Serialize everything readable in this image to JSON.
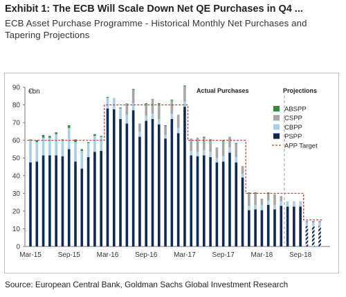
{
  "exhibit": {
    "title": "Exhibit 1: The ECB Will Scale Down Net QE Purchases in Q4 ...",
    "subtitle": "ECB Asset Purchase Programme - Historical Monthly Net Purchases and Tapering Projections"
  },
  "source": "Source: European Central Bank, Goldman Sachs Global Investment Research",
  "chart_data": {
    "type": "bar",
    "stacked": true,
    "ylabel": "€bn",
    "ylim": [
      0,
      90
    ],
    "yticks": [
      0,
      10,
      20,
      30,
      40,
      50,
      60,
      70,
      80,
      90
    ],
    "xtick_labels": [
      "Mar-15",
      "Sep-15",
      "Mar-16",
      "Sep-16",
      "Mar-17",
      "Sep-17",
      "Mar-18",
      "Sep-18"
    ],
    "xtick_months": [
      "2015-03",
      "2015-09",
      "2016-03",
      "2016-09",
      "2017-03",
      "2017-09",
      "2018-03",
      "2018-09"
    ],
    "annotations": {
      "actual": "Actual Purchases",
      "projections": "Projections"
    },
    "projection_start": "2018-07",
    "categories": [
      "2015-03",
      "2015-04",
      "2015-05",
      "2015-06",
      "2015-07",
      "2015-08",
      "2015-09",
      "2015-10",
      "2015-11",
      "2015-12",
      "2016-01",
      "2016-02",
      "2016-03",
      "2016-04",
      "2016-05",
      "2016-06",
      "2016-07",
      "2016-08",
      "2016-09",
      "2016-10",
      "2016-11",
      "2016-12",
      "2017-01",
      "2017-02",
      "2017-03",
      "2017-04",
      "2017-05",
      "2017-06",
      "2017-07",
      "2017-08",
      "2017-09",
      "2017-10",
      "2017-11",
      "2017-12",
      "2018-01",
      "2018-02",
      "2018-03",
      "2018-04",
      "2018-05",
      "2018-06",
      "2018-07",
      "2018-08",
      "2018-09",
      "2018-10",
      "2018-11",
      "2018-12"
    ],
    "series": [
      {
        "name": "ABSPP",
        "color": "#2e8b3e",
        "values": [
          0.5,
          1,
          1.5,
          1,
          1,
          0.5,
          1.5,
          1.5,
          1,
          0.5,
          1,
          0.5,
          0.5,
          0,
          0.5,
          0,
          0.5,
          0,
          0.5,
          0,
          0.5,
          0.5,
          0.5,
          0,
          0.5,
          0,
          0,
          0.5,
          0.5,
          0,
          0.5,
          0,
          0.5,
          0,
          0.5,
          0.5,
          0,
          0.5,
          0,
          0,
          0,
          0,
          0,
          0,
          0,
          0
        ]
      },
      {
        "name": "CSPP",
        "color": "#a6a6a6",
        "values": [
          0,
          0,
          0,
          0,
          0,
          0,
          0,
          0,
          0,
          0,
          0,
          0,
          0,
          0,
          0,
          6.5,
          7.5,
          4.5,
          6.5,
          8.5,
          8.5,
          5,
          7.5,
          7.5,
          8.5,
          7,
          8,
          7,
          6.5,
          6,
          8.5,
          6,
          7.5,
          4.5,
          7,
          6.5,
          3.5,
          4,
          6,
          3,
          0,
          0,
          0,
          1,
          1,
          1
        ]
      },
      {
        "name": "CBPP",
        "color": "#a9cfe6",
        "values": [
          12.5,
          11,
          10,
          10,
          12,
          9,
          12,
          11,
          10,
          8,
          9,
          8,
          6,
          6.5,
          6,
          5,
          4,
          3,
          3,
          3,
          3,
          2,
          3,
          3,
          3,
          2.5,
          2.5,
          3,
          3,
          2.5,
          3,
          3,
          3,
          2,
          2.5,
          2.5,
          3,
          2.5,
          2.5,
          2.5,
          3,
          3,
          3,
          2,
          2,
          2
        ]
      },
      {
        "name": "PSPP",
        "color": "#0d2a56",
        "values": [
          47.5,
          48,
          51.5,
          51.5,
          51.5,
          51,
          55,
          48,
          44,
          50.5,
          53.5,
          54,
          78,
          77.5,
          72,
          69.5,
          77,
          62,
          71,
          72,
          69,
          61,
          72,
          64,
          79,
          51.5,
          51,
          51.5,
          50.5,
          47.5,
          48,
          53,
          47.5,
          39,
          20.5,
          21,
          20.5,
          23.5,
          21,
          23,
          22.5,
          22.5,
          22.5,
          11.5,
          11.5,
          11.5
        ]
      }
    ],
    "series_app_target": {
      "name": "APP Target",
      "color": "#c0302b",
      "values": [
        60,
        60,
        60,
        60,
        60,
        60,
        60,
        60,
        60,
        60,
        60,
        60,
        80,
        80,
        80,
        80,
        80,
        80,
        80,
        80,
        80,
        80,
        80,
        80,
        80,
        60,
        60,
        60,
        60,
        60,
        60,
        60,
        60,
        60,
        30,
        30,
        30,
        30,
        30,
        30,
        30,
        30,
        30,
        15,
        15,
        15
      ]
    },
    "legend": {
      "placement": "right",
      "items": [
        "ABSPP",
        "CSPP",
        "CBPP",
        "PSPP",
        "APP Target"
      ]
    },
    "grid": false
  }
}
